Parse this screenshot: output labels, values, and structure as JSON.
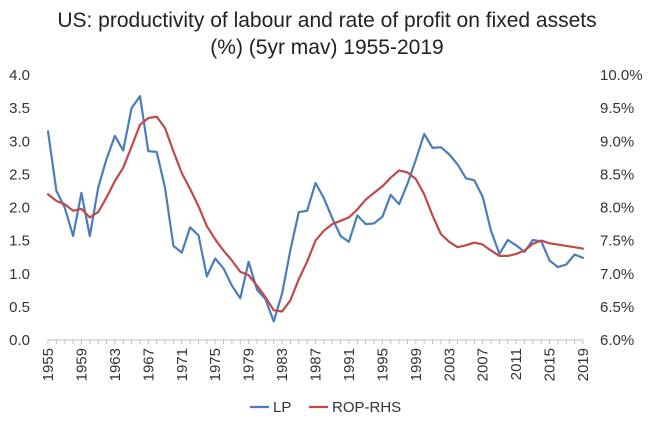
{
  "chart_data": {
    "type": "line",
    "title_line1": "US: productivity of labour and rate of profit on fixed assets",
    "title_line2": "(%) (5yr mav) 1955-2019",
    "x": [
      1955,
      1956,
      1957,
      1958,
      1959,
      1960,
      1961,
      1962,
      1963,
      1964,
      1965,
      1966,
      1967,
      1968,
      1969,
      1970,
      1971,
      1972,
      1973,
      1974,
      1975,
      1976,
      1977,
      1978,
      1979,
      1980,
      1981,
      1982,
      1983,
      1984,
      1985,
      1986,
      1987,
      1988,
      1989,
      1990,
      1991,
      1992,
      1993,
      1994,
      1995,
      1996,
      1997,
      1998,
      1999,
      2000,
      2001,
      2002,
      2003,
      2004,
      2005,
      2006,
      2007,
      2008,
      2009,
      2010,
      2011,
      2012,
      2013,
      2014,
      2015,
      2016,
      2017,
      2018,
      2019
    ],
    "x_tick_labels": [
      "1955",
      "1959",
      "1963",
      "1967",
      "1971",
      "1975",
      "1979",
      "1983",
      "1987",
      "1991",
      "1995",
      "1999",
      "2003",
      "2007",
      "2011",
      "2015",
      "2019"
    ],
    "left_axis": {
      "ylim": [
        0,
        4
      ],
      "ticks": [
        "0.0",
        "0.5",
        "1.0",
        "1.5",
        "2.0",
        "2.5",
        "3.0",
        "3.5",
        "4.0"
      ]
    },
    "right_axis": {
      "ylim": [
        6,
        10
      ],
      "ticks": [
        "6.0%",
        "6.5%",
        "7.0%",
        "7.5%",
        "8.0%",
        "8.5%",
        "9.0%",
        "9.5%",
        "10.0%"
      ]
    },
    "series": [
      {
        "name": "LP",
        "axis": "left",
        "color": "#4a7ebb",
        "values": [
          3.15,
          2.25,
          2.0,
          1.57,
          2.22,
          1.57,
          2.3,
          2.73,
          3.08,
          2.86,
          3.5,
          3.68,
          2.85,
          2.84,
          2.3,
          1.42,
          1.32,
          1.7,
          1.58,
          0.96,
          1.23,
          1.08,
          0.82,
          0.63,
          1.18,
          0.76,
          0.62,
          0.28,
          0.7,
          1.36,
          1.93,
          1.95,
          2.37,
          2.14,
          1.84,
          1.57,
          1.48,
          1.88,
          1.75,
          1.76,
          1.86,
          2.19,
          2.05,
          2.36,
          2.72,
          3.11,
          2.9,
          2.91,
          2.8,
          2.65,
          2.44,
          2.41,
          2.16,
          1.65,
          1.3,
          1.51,
          1.43,
          1.33,
          1.51,
          1.49,
          1.2,
          1.1,
          1.14,
          1.29,
          1.24
        ]
      },
      {
        "name": "ROP-RHS",
        "axis": "right",
        "color": "#be4b48",
        "values": [
          8.2,
          8.1,
          8.05,
          7.95,
          7.98,
          7.85,
          7.93,
          8.15,
          8.4,
          8.6,
          8.92,
          9.25,
          9.35,
          9.37,
          9.2,
          8.85,
          8.52,
          8.28,
          8.02,
          7.72,
          7.52,
          7.35,
          7.2,
          7.03,
          6.98,
          6.82,
          6.65,
          6.45,
          6.43,
          6.6,
          6.92,
          7.18,
          7.5,
          7.65,
          7.75,
          7.8,
          7.85,
          7.97,
          8.12,
          8.22,
          8.32,
          8.45,
          8.56,
          8.53,
          8.43,
          8.2,
          7.88,
          7.6,
          7.48,
          7.4,
          7.43,
          7.47,
          7.44,
          7.35,
          7.27,
          7.27,
          7.3,
          7.35,
          7.45,
          7.5,
          7.46,
          7.44,
          7.42,
          7.4,
          7.38
        ]
      }
    ],
    "legend": [
      "LP",
      "ROP-RHS"
    ],
    "legend_position": "bottom-center",
    "grid": false
  }
}
